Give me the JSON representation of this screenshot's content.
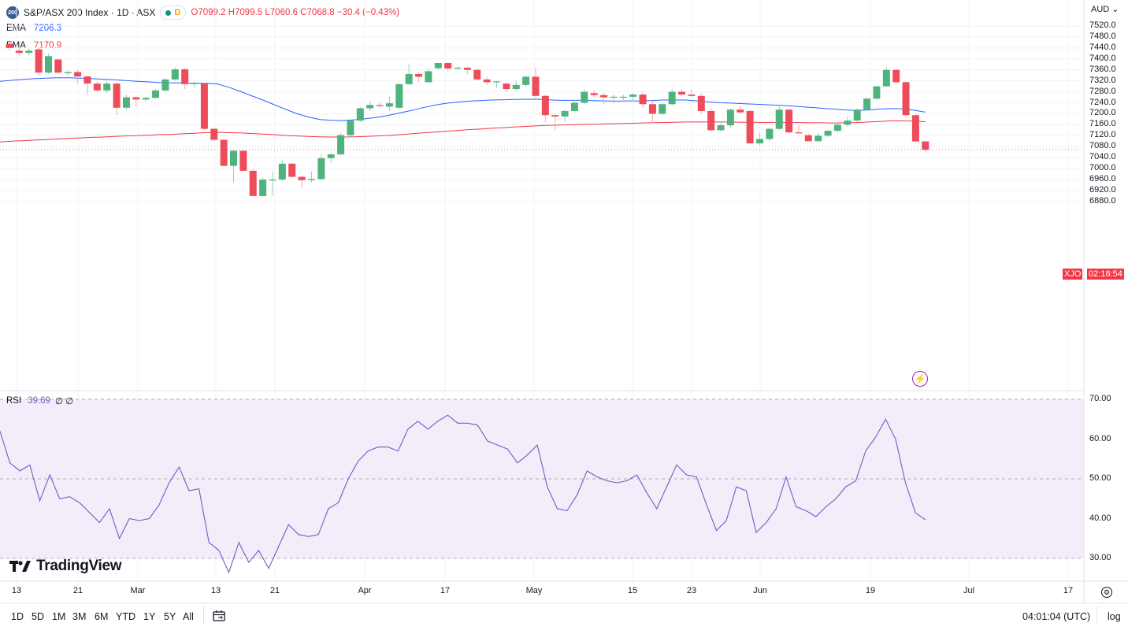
{
  "header": {
    "symbol_badge": "200",
    "symbol_title": "S&P/ASX 200 Index · 1D · ASX",
    "interval_badge": "D",
    "ohlc": {
      "open": "O7099.2",
      "high": "H7099.5",
      "low": "L7060.6",
      "close": "C7068.8",
      "change": "−30.4 (−0.43%)"
    }
  },
  "indicators": {
    "ema_fast": {
      "label": "EMA",
      "value": "7206.3",
      "color": "#2962ff"
    },
    "ema_slow": {
      "label": "EMA",
      "value": "7170.9",
      "color": "#f23645"
    },
    "rsi": {
      "label": "RSI",
      "value": "39.69",
      "extra": "∅ ∅",
      "color": "#7e57c2"
    }
  },
  "axis": {
    "currency": "AUD",
    "currency_arrow": "⌄",
    "price_ticks": [
      "7520.0",
      "7480.0",
      "7440.0",
      "7400.0",
      "7360.0",
      "7320.0",
      "7280.0",
      "7240.0",
      "7200.0",
      "7160.0",
      "7120.0",
      "7080.0",
      "7040.0",
      "7000.0",
      "6960.0",
      "6920.0",
      "6880.0"
    ],
    "rsi_ticks": [
      "70.00",
      "60.00",
      "50.00",
      "40.00",
      "30.00"
    ],
    "time_labels": [
      "13",
      "21",
      "Mar",
      "13",
      "21",
      "Apr",
      "17",
      "May",
      "15",
      "23",
      "Jun",
      "19",
      "Jul",
      "17"
    ],
    "last_price_symbol": "XJO",
    "last_price_countdown": "02:18:54"
  },
  "footer": {
    "ranges": [
      "1D",
      "5D",
      "1M",
      "3M",
      "6M",
      "YTD",
      "1Y",
      "5Y",
      "All"
    ],
    "clock": "04:01:04 (UTC)",
    "scale_mode": "log",
    "brand": "TradingView"
  },
  "chart_data": [
    {
      "type": "candlestick",
      "title": "S&P/ASX 200 Index · 1D · ASX",
      "ylabel": "AUD",
      "ylim": [
        6860,
        7540
      ],
      "log_scale": false,
      "series": [
        {
          "name": "EMA",
          "color": "#2962ff",
          "values": [
            7318,
            7322,
            7325,
            7328,
            7330,
            7331,
            7331,
            7330,
            7328,
            7326,
            7324,
            7321,
            7318,
            7316,
            7314,
            7313,
            7312,
            7311,
            7311,
            7309,
            7297,
            7282,
            7266,
            7250,
            7233,
            7216,
            7200,
            7188,
            7179,
            7176,
            7175,
            7178,
            7182,
            7187,
            7194,
            7203,
            7212,
            7222,
            7231,
            7238,
            7242,
            7246,
            7248,
            7250,
            7251,
            7252,
            7253,
            7253,
            7251,
            7249,
            7249,
            7249,
            7248,
            7247,
            7246,
            7247,
            7247,
            7248,
            7250,
            7250,
            7250,
            7247,
            7243,
            7240,
            7239,
            7237,
            7235,
            7233,
            7231,
            7229,
            7226,
            7223,
            7220,
            7217,
            7214,
            7212,
            7214,
            7217,
            7219,
            7218,
            7213,
            7206
          ]
        },
        {
          "name": "EMA",
          "color": "#f23645",
          "values": [
            7097,
            7100,
            7102,
            7104,
            7106,
            7108,
            7110,
            7112,
            7114,
            7115,
            7117,
            7119,
            7120,
            7122,
            7124,
            7125,
            7127,
            7129,
            7131,
            7132,
            7131,
            7130,
            7128,
            7126,
            7124,
            7121,
            7119,
            7117,
            7116,
            7115,
            7115,
            7116,
            7117,
            7119,
            7121,
            7124,
            7127,
            7130,
            7133,
            7136,
            7139,
            7142,
            7144,
            7147,
            7149,
            7152,
            7154,
            7156,
            7158,
            7159,
            7160,
            7161,
            7162,
            7163,
            7164,
            7165,
            7166,
            7167,
            7168,
            7169,
            7170,
            7170,
            7170,
            7170,
            7170,
            7169,
            7169,
            7168,
            7168,
            7168,
            7168,
            7167,
            7167,
            7166,
            7167,
            7168,
            7170,
            7172,
            7174,
            7174,
            7173,
            7171
          ]
        }
      ],
      "candles": [
        {
          "o": 7455,
          "h": 7470,
          "l": 7430,
          "c": 7440
        },
        {
          "o": 7430,
          "h": 7445,
          "l": 7410,
          "c": 7422
        },
        {
          "o": 7422,
          "h": 7438,
          "l": 7412,
          "c": 7430
        },
        {
          "o": 7435,
          "h": 7440,
          "l": 7340,
          "c": 7350
        },
        {
          "o": 7350,
          "h": 7420,
          "l": 7345,
          "c": 7410
        },
        {
          "o": 7398,
          "h": 7400,
          "l": 7345,
          "c": 7350
        },
        {
          "o": 7348,
          "h": 7358,
          "l": 7338,
          "c": 7352
        },
        {
          "o": 7352,
          "h": 7360,
          "l": 7310,
          "c": 7336
        },
        {
          "o": 7336,
          "h": 7340,
          "l": 7270,
          "c": 7310
        },
        {
          "o": 7310,
          "h": 7320,
          "l": 7280,
          "c": 7285
        },
        {
          "o": 7285,
          "h": 7320,
          "l": 7275,
          "c": 7310
        },
        {
          "o": 7310,
          "h": 7315,
          "l": 7195,
          "c": 7222
        },
        {
          "o": 7222,
          "h": 7270,
          "l": 7215,
          "c": 7260
        },
        {
          "o": 7260,
          "h": 7268,
          "l": 7225,
          "c": 7252
        },
        {
          "o": 7252,
          "h": 7262,
          "l": 7245,
          "c": 7258
        },
        {
          "o": 7258,
          "h": 7290,
          "l": 7255,
          "c": 7285
        },
        {
          "o": 7285,
          "h": 7330,
          "l": 7280,
          "c": 7325
        },
        {
          "o": 7325,
          "h": 7370,
          "l": 7320,
          "c": 7362
        },
        {
          "o": 7362,
          "h": 7368,
          "l": 7290,
          "c": 7308
        },
        {
          "o": 7308,
          "h": 7318,
          "l": 7295,
          "c": 7312
        },
        {
          "o": 7310,
          "h": 7312,
          "l": 7140,
          "c": 7145
        },
        {
          "o": 7145,
          "h": 7150,
          "l": 7100,
          "c": 7105
        },
        {
          "o": 7105,
          "h": 7108,
          "l": 7015,
          "c": 7010
        },
        {
          "o": 7010,
          "h": 7068,
          "l": 6950,
          "c": 7065
        },
        {
          "o": 7065,
          "h": 7068,
          "l": 6990,
          "c": 6992
        },
        {
          "o": 6992,
          "h": 7000,
          "l": 6900,
          "c": 6900
        },
        {
          "o": 6900,
          "h": 6968,
          "l": 6900,
          "c": 6960
        },
        {
          "o": 6960,
          "h": 6990,
          "l": 6900,
          "c": 6960
        },
        {
          "o": 6960,
          "h": 7030,
          "l": 6955,
          "c": 7018
        },
        {
          "o": 7018,
          "h": 7020,
          "l": 6968,
          "c": 6970
        },
        {
          "o": 6970,
          "h": 6975,
          "l": 6930,
          "c": 6958
        },
        {
          "o": 6958,
          "h": 6990,
          "l": 6950,
          "c": 6962
        },
        {
          "o": 6962,
          "h": 7050,
          "l": 6958,
          "c": 7038
        },
        {
          "o": 7038,
          "h": 7055,
          "l": 7020,
          "c": 7052
        },
        {
          "o": 7052,
          "h": 7130,
          "l": 7048,
          "c": 7122
        },
        {
          "o": 7122,
          "h": 7178,
          "l": 7118,
          "c": 7175
        },
        {
          "o": 7175,
          "h": 7225,
          "l": 7170,
          "c": 7220
        },
        {
          "o": 7220,
          "h": 7245,
          "l": 7210,
          "c": 7232
        },
        {
          "o": 7232,
          "h": 7240,
          "l": 7222,
          "c": 7230
        },
        {
          "o": 7226,
          "h": 7263,
          "l": 7210,
          "c": 7238
        },
        {
          "o": 7222,
          "h": 7310,
          "l": 7218,
          "c": 7308
        },
        {
          "o": 7308,
          "h": 7380,
          "l": 7305,
          "c": 7345
        },
        {
          "o": 7345,
          "h": 7350,
          "l": 7315,
          "c": 7335
        },
        {
          "o": 7315,
          "h": 7365,
          "l": 7314,
          "c": 7355
        },
        {
          "o": 7366,
          "h": 7385,
          "l": 7360,
          "c": 7385
        },
        {
          "o": 7385,
          "h": 7388,
          "l": 7355,
          "c": 7365
        },
        {
          "o": 7365,
          "h": 7372,
          "l": 7360,
          "c": 7368
        },
        {
          "o": 7368,
          "h": 7372,
          "l": 7345,
          "c": 7360
        },
        {
          "o": 7360,
          "h": 7363,
          "l": 7320,
          "c": 7325
        },
        {
          "o": 7325,
          "h": 7335,
          "l": 7305,
          "c": 7315
        },
        {
          "o": 7315,
          "h": 7320,
          "l": 7295,
          "c": 7318
        },
        {
          "o": 7310,
          "h": 7315,
          "l": 7280,
          "c": 7290
        },
        {
          "o": 7290,
          "h": 7320,
          "l": 7283,
          "c": 7305
        },
        {
          "o": 7305,
          "h": 7340,
          "l": 7300,
          "c": 7335
        },
        {
          "o": 7335,
          "h": 7370,
          "l": 7260,
          "c": 7265
        },
        {
          "o": 7265,
          "h": 7270,
          "l": 7170,
          "c": 7195
        },
        {
          "o": 7195,
          "h": 7200,
          "l": 7140,
          "c": 7190
        },
        {
          "o": 7190,
          "h": 7215,
          "l": 7170,
          "c": 7210
        },
        {
          "o": 7210,
          "h": 7250,
          "l": 7205,
          "c": 7240
        },
        {
          "o": 7240,
          "h": 7290,
          "l": 7235,
          "c": 7280
        },
        {
          "o": 7275,
          "h": 7285,
          "l": 7260,
          "c": 7268
        },
        {
          "o": 7268,
          "h": 7275,
          "l": 7235,
          "c": 7260
        },
        {
          "o": 7260,
          "h": 7270,
          "l": 7238,
          "c": 7262
        },
        {
          "o": 7262,
          "h": 7270,
          "l": 7245,
          "c": 7262
        },
        {
          "o": 7262,
          "h": 7275,
          "l": 7245,
          "c": 7270
        },
        {
          "o": 7270,
          "h": 7280,
          "l": 7220,
          "c": 7235
        },
        {
          "o": 7235,
          "h": 7245,
          "l": 7165,
          "c": 7200
        },
        {
          "o": 7200,
          "h": 7240,
          "l": 7195,
          "c": 7235
        },
        {
          "o": 7235,
          "h": 7290,
          "l": 7230,
          "c": 7280
        },
        {
          "o": 7280,
          "h": 7290,
          "l": 7265,
          "c": 7270
        },
        {
          "o": 7270,
          "h": 7290,
          "l": 7260,
          "c": 7265
        },
        {
          "o": 7265,
          "h": 7275,
          "l": 7200,
          "c": 7210
        },
        {
          "o": 7210,
          "h": 7220,
          "l": 7135,
          "c": 7140
        },
        {
          "o": 7140,
          "h": 7172,
          "l": 7135,
          "c": 7158
        },
        {
          "o": 7158,
          "h": 7220,
          "l": 7150,
          "c": 7215
        },
        {
          "o": 7215,
          "h": 7230,
          "l": 7200,
          "c": 7205
        },
        {
          "o": 7210,
          "h": 7215,
          "l": 7090,
          "c": 7092
        },
        {
          "o": 7092,
          "h": 7130,
          "l": 7085,
          "c": 7108
        },
        {
          "o": 7108,
          "h": 7150,
          "l": 7100,
          "c": 7145
        },
        {
          "o": 7145,
          "h": 7235,
          "l": 7140,
          "c": 7215
        },
        {
          "o": 7215,
          "h": 7218,
          "l": 7130,
          "c": 7132
        },
        {
          "o": 7132,
          "h": 7160,
          "l": 7128,
          "c": 7130
        },
        {
          "o": 7122,
          "h": 7128,
          "l": 7100,
          "c": 7100
        },
        {
          "o": 7100,
          "h": 7130,
          "l": 7098,
          "c": 7120
        },
        {
          "o": 7120,
          "h": 7140,
          "l": 7115,
          "c": 7138
        },
        {
          "o": 7138,
          "h": 7165,
          "l": 7132,
          "c": 7160
        },
        {
          "o": 7160,
          "h": 7190,
          "l": 7152,
          "c": 7175
        },
        {
          "o": 7175,
          "h": 7220,
          "l": 7170,
          "c": 7215
        },
        {
          "o": 7215,
          "h": 7260,
          "l": 7210,
          "c": 7255
        },
        {
          "o": 7255,
          "h": 7300,
          "l": 7250,
          "c": 7300
        },
        {
          "o": 7300,
          "h": 7370,
          "l": 7298,
          "c": 7360
        },
        {
          "o": 7360,
          "h": 7362,
          "l": 7310,
          "c": 7315
        },
        {
          "o": 7315,
          "h": 7318,
          "l": 7190,
          "c": 7195
        },
        {
          "o": 7195,
          "h": 7198,
          "l": 7095,
          "c": 7099
        },
        {
          "o": 7099.2,
          "h": 7099.5,
          "l": 7060.6,
          "c": 7068.8
        }
      ]
    },
    {
      "type": "line",
      "title": "RSI",
      "ylim": [
        25,
        72
      ],
      "series": [
        {
          "name": "RSI",
          "color": "#7e57c2",
          "values": [
            62,
            54,
            52,
            53.5,
            44.5,
            51,
            45,
            45.5,
            44,
            41.5,
            39,
            42.5,
            35,
            40,
            39.5,
            40,
            43.5,
            49,
            53,
            47,
            47.5,
            34,
            32,
            26.5,
            34,
            29,
            32,
            27.5,
            33,
            38.5,
            36,
            35.5,
            36,
            42.5,
            44,
            50,
            54.5,
            57,
            58,
            58,
            57,
            62.5,
            64.5,
            62.5,
            64.5,
            66,
            64,
            64,
            63.5,
            59.5,
            58.5,
            57.5,
            54,
            56,
            58.5,
            48,
            42.5,
            42,
            46,
            52,
            50.5,
            49.5,
            49,
            49.5,
            51,
            46.5,
            42.5,
            48,
            53.5,
            51,
            50.5,
            43.5,
            37,
            39.5,
            48,
            47,
            36.5,
            39,
            42.5,
            50.5,
            43,
            42,
            40.5,
            43,
            45,
            48,
            49.5,
            57,
            60.5,
            65,
            60,
            49,
            41.5,
            39.69
          ]
        }
      ]
    }
  ]
}
